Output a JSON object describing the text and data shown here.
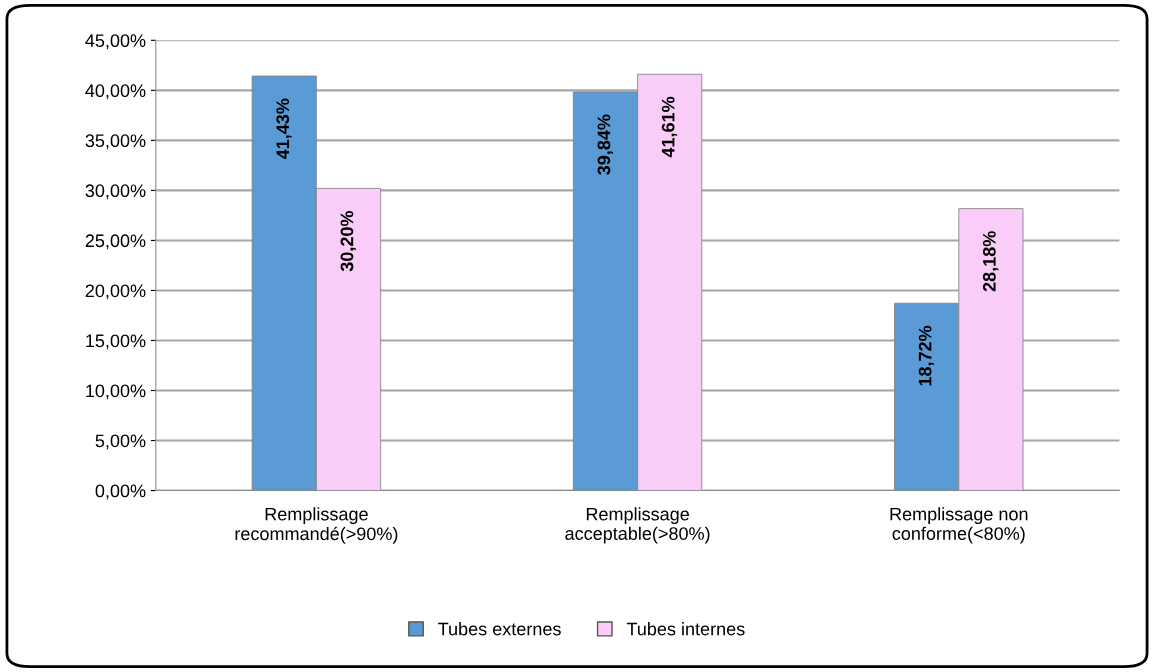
{
  "chart_data": {
    "type": "bar",
    "categories": [
      "Remplissage\nrecommandé(>90%)",
      "Remplissage\nacceptable(>80%)",
      "Remplissage non\nconforme(<80%)"
    ],
    "series": [
      {
        "name": "Tubes externes",
        "color": "#5b9bd5",
        "values": [
          41.43,
          39.84,
          18.72
        ],
        "value_labels": [
          "41,43%",
          "39,84%",
          "18,72%"
        ]
      },
      {
        "name": "Tubes internes",
        "color": "#f9cdf7",
        "values": [
          30.2,
          41.61,
          28.18
        ],
        "value_labels": [
          "30,20%",
          "41,61%",
          "28,18%"
        ]
      }
    ],
    "ylim": [
      0,
      45
    ],
    "yticks": [
      {
        "value": 0,
        "label": "0,00%"
      },
      {
        "value": 5,
        "label": "5,00%"
      },
      {
        "value": 10,
        "label": "10,00%"
      },
      {
        "value": 15,
        "label": "15,00%"
      },
      {
        "value": 20,
        "label": "20,00%"
      },
      {
        "value": 25,
        "label": "25,00%"
      },
      {
        "value": 30,
        "label": "30,00%"
      },
      {
        "value": 35,
        "label": "35,00%"
      },
      {
        "value": 40,
        "label": "40,00%"
      },
      {
        "value": 45,
        "label": "45,00%"
      }
    ],
    "grid": "y",
    "legend": "bottom"
  }
}
